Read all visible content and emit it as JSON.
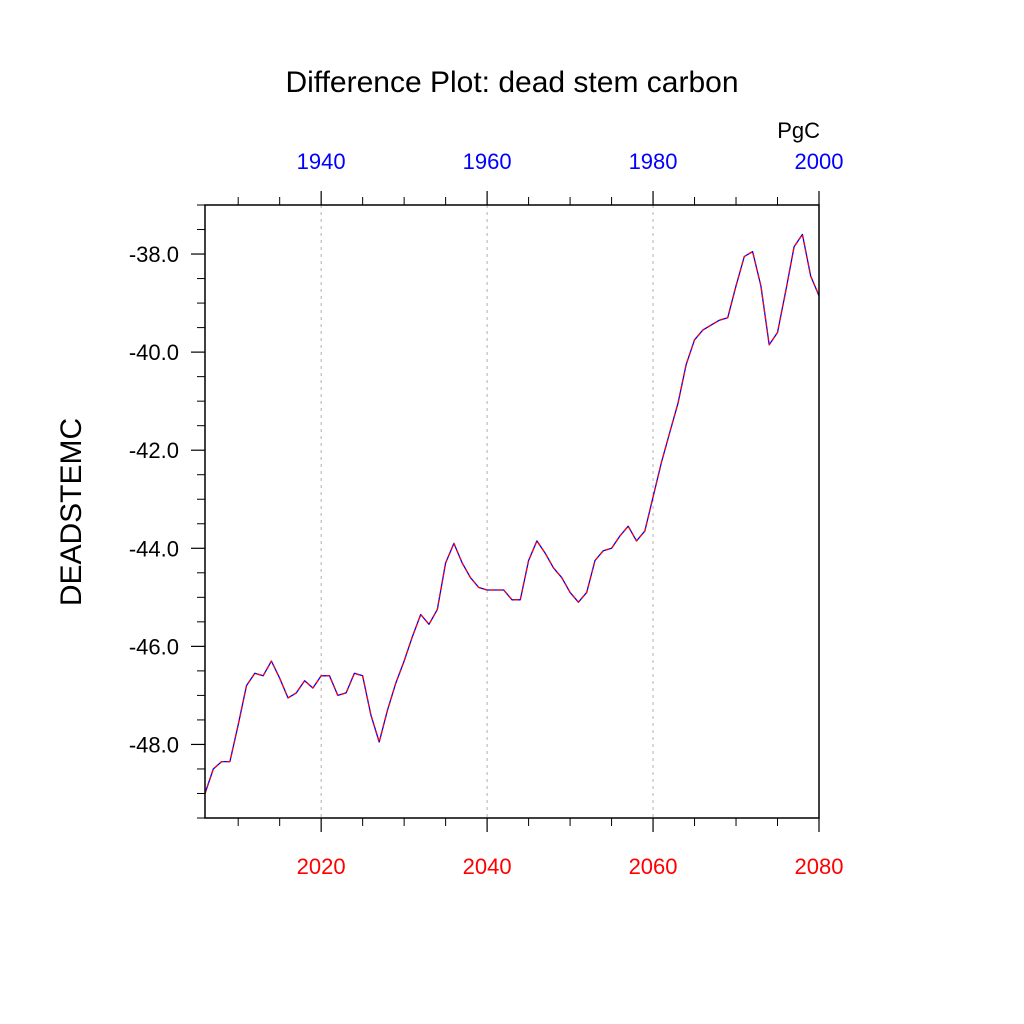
{
  "chart_data": {
    "type": "line",
    "title": "Difference Plot: dead stem carbon",
    "ylabel": "DEADSTEMC",
    "units": "PgC",
    "xlim": [
      2006,
      2080
    ],
    "ylim": [
      -49.5,
      -37.0
    ],
    "grid": "vertical-dotted",
    "bottom_axis": {
      "ticks": [
        2020,
        2040,
        2060,
        2080
      ],
      "labels": [
        "2020",
        "2040",
        "2060",
        "2080"
      ],
      "color": "#ff0000"
    },
    "top_axis": {
      "offset_years": 80,
      "ticks": [
        1940,
        1960,
        1980,
        2000
      ],
      "labels": [
        "1940",
        "1960",
        "1980",
        "2000"
      ],
      "color": "#0000ff"
    },
    "y_ticks": [
      -38.0,
      -40.0,
      -42.0,
      -44.0,
      -46.0,
      -48.0
    ],
    "y_labels": [
      "-38.0",
      "-40.0",
      "-42.0",
      "-44.0",
      "-46.0",
      "-48.0"
    ],
    "series": [
      {
        "line_colors": [
          "#0000ff",
          "#ff0000"
        ],
        "x": [
          2006,
          2007,
          2008,
          2009,
          2010,
          2011,
          2012,
          2013,
          2014,
          2015,
          2016,
          2017,
          2018,
          2019,
          2020,
          2021,
          2022,
          2023,
          2024,
          2025,
          2026,
          2027,
          2028,
          2029,
          2030,
          2031,
          2032,
          2033,
          2034,
          2035,
          2036,
          2037,
          2038,
          2039,
          2040,
          2041,
          2042,
          2043,
          2044,
          2045,
          2046,
          2047,
          2048,
          2049,
          2050,
          2051,
          2052,
          2053,
          2054,
          2055,
          2056,
          2057,
          2058,
          2059,
          2060,
          2061,
          2062,
          2063,
          2064,
          2065,
          2066,
          2067,
          2068,
          2069,
          2070,
          2071,
          2072,
          2073,
          2074,
          2075,
          2076,
          2077,
          2078,
          2079,
          2080
        ],
        "y": [
          -49.0,
          -48.5,
          -48.35,
          -48.35,
          -47.6,
          -46.8,
          -46.55,
          -46.6,
          -46.3,
          -46.65,
          -47.05,
          -46.95,
          -46.7,
          -46.85,
          -46.6,
          -46.6,
          -47.0,
          -46.95,
          -46.55,
          -46.6,
          -47.4,
          -47.95,
          -47.3,
          -46.75,
          -46.3,
          -45.8,
          -45.35,
          -45.55,
          -45.25,
          -44.3,
          -43.9,
          -44.3,
          -44.6,
          -44.8,
          -44.85,
          -44.85,
          -44.85,
          -45.05,
          -45.05,
          -44.25,
          -43.85,
          -44.1,
          -44.4,
          -44.6,
          -44.9,
          -45.1,
          -44.9,
          -44.25,
          -44.05,
          -44.0,
          -43.75,
          -43.55,
          -43.85,
          -43.65,
          -42.95,
          -42.25,
          -41.65,
          -41.05,
          -40.25,
          -39.75,
          -39.55,
          -39.45,
          -39.35,
          -39.3,
          -38.65,
          -38.05,
          -37.95,
          -38.65,
          -39.85,
          -39.6,
          -38.75,
          -37.85,
          -37.6,
          -38.45,
          -38.85
        ]
      }
    ]
  }
}
